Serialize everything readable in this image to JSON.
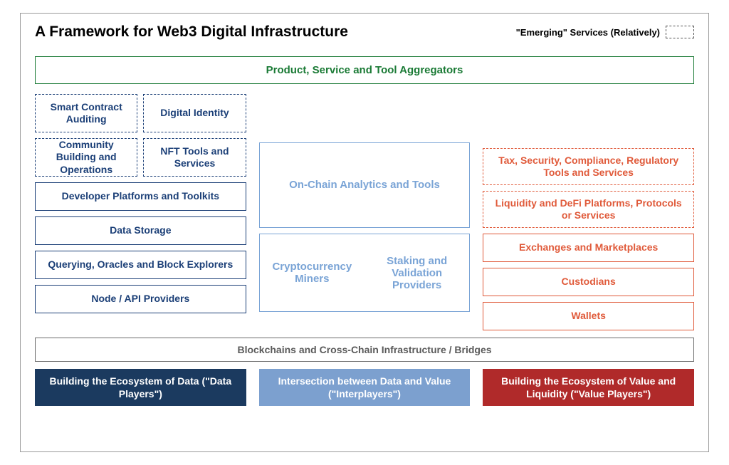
{
  "title": "A Framework for Web3 Digital Infrastructure",
  "legend": {
    "label": "\"Emerging\" Services (Relatively)"
  },
  "colors": {
    "green": "#1a7a35",
    "navy": "#1b3f77",
    "lightblue_border": "#7aa4d6",
    "lightblue_text": "#7aa4d6",
    "coral": "#e05a3a",
    "gray_border": "#6b6b6b",
    "gray_text": "#5a5a5a",
    "footer_navy": "#1b3a5f",
    "footer_mid": "#7ca0cf",
    "footer_red": "#b02a2a"
  },
  "aggregator": "Product, Service and Tool Aggregators",
  "left": {
    "row1a": "Smart Contract Auditing",
    "row1b": "Digital Identity",
    "row2a": "Community Building and Operations",
    "row2b": "NFT Tools and Services",
    "row3": "Developer Platforms and Toolkits",
    "row4": "Data Storage",
    "row5": "Querying, Oracles and Block Explorers",
    "row6": "Node / API Providers"
  },
  "mid": {
    "top": "On-Chain Analytics and Tools",
    "bota": "Cryptocurrency Miners",
    "botb": "Staking and Validation Providers"
  },
  "right": {
    "r1": "Tax, Security, Compliance, Regulatory Tools and Services",
    "r2": "Liquidity and DeFi Platforms, Protocols or Services",
    "r3": "Exchanges and Marketplaces",
    "r4": "Custodians",
    "r5": "Wallets"
  },
  "infra": "Blockchains and Cross-Chain Infrastructure / Bridges",
  "footers": {
    "a": "Building the Ecosystem of Data (\"Data Players\")",
    "b": "Intersection between Data and Value (\"Interplayers\")",
    "c": "Building the Ecosystem of Value and Liquidity (\"Value Players\")"
  }
}
